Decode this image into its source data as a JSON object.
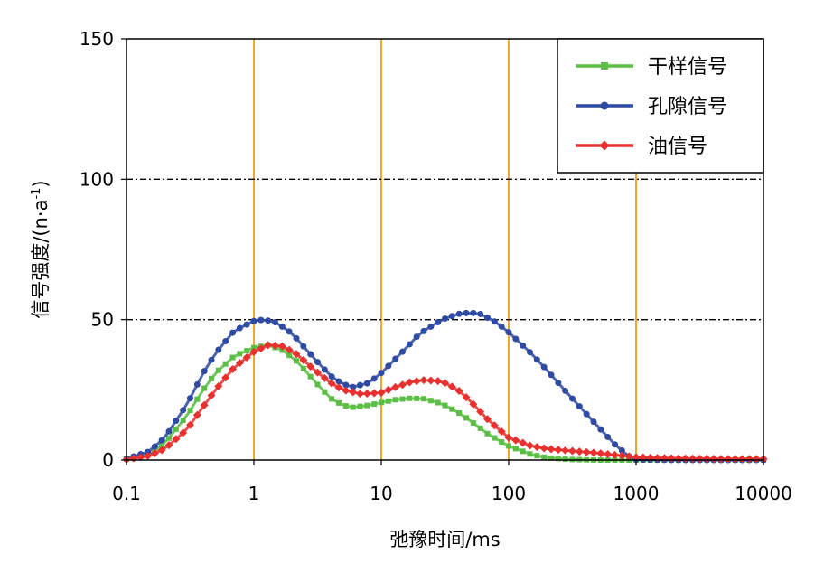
{
  "chart_data": {
    "type": "line",
    "xscale": "log",
    "xlim": [
      0.1,
      10000
    ],
    "ylim": [
      0,
      150
    ],
    "xticks": [
      0.1,
      1,
      10,
      100,
      1000,
      10000
    ],
    "xtick_labels": [
      "0.1",
      "1",
      "10",
      "100",
      "1000",
      "10000"
    ],
    "yticks": [
      0,
      50,
      100,
      150
    ],
    "ytick_labels": [
      "0",
      "50",
      "100",
      "150"
    ],
    "xlabel": "弛豫时间/ms",
    "ylabel_main": "信号强度/(n·a",
    "ylabel_sup": "-1",
    "ylabel_close": ")",
    "vertical_gridlines_at": [
      1,
      10,
      100,
      1000
    ],
    "horizontal_gridlines_at": [
      50,
      100
    ],
    "legend_position": "top-right",
    "series": [
      {
        "name": "干样信号",
        "color": "#5bbf45",
        "marker": "square",
        "points": [
          [
            0.1,
            0.3
          ],
          [
            0.15,
            2
          ],
          [
            0.2,
            6
          ],
          [
            0.3,
            16
          ],
          [
            0.4,
            25
          ],
          [
            0.5,
            31
          ],
          [
            0.7,
            37
          ],
          [
            1,
            40
          ],
          [
            1.3,
            41
          ],
          [
            1.7,
            39
          ],
          [
            2.2,
            35
          ],
          [
            3,
            28
          ],
          [
            4,
            22
          ],
          [
            5,
            19.5
          ],
          [
            6,
            18.8
          ],
          [
            8,
            19.5
          ],
          [
            10,
            20.5
          ],
          [
            13,
            21.5
          ],
          [
            17,
            22
          ],
          [
            22,
            21.8
          ],
          [
            30,
            20
          ],
          [
            40,
            17
          ],
          [
            50,
            14
          ],
          [
            70,
            9
          ],
          [
            100,
            5
          ],
          [
            150,
            2
          ],
          [
            200,
            0.8
          ],
          [
            300,
            0.2
          ],
          [
            500,
            0
          ],
          [
            1000,
            0
          ],
          [
            2000,
            0
          ],
          [
            5000,
            0
          ],
          [
            10000,
            0
          ]
        ]
      },
      {
        "name": "孔隙信号",
        "color": "#2e4aa3",
        "marker": "circle",
        "points": [
          [
            0.1,
            0.5
          ],
          [
            0.15,
            3
          ],
          [
            0.2,
            8
          ],
          [
            0.3,
            20
          ],
          [
            0.4,
            31
          ],
          [
            0.5,
            38
          ],
          [
            0.7,
            46
          ],
          [
            1,
            49.5
          ],
          [
            1.2,
            50
          ],
          [
            1.5,
            49
          ],
          [
            2,
            45
          ],
          [
            3,
            36
          ],
          [
            4,
            30
          ],
          [
            5,
            27
          ],
          [
            6,
            26
          ],
          [
            8,
            27.5
          ],
          [
            10,
            31
          ],
          [
            15,
            39
          ],
          [
            20,
            45
          ],
          [
            30,
            50
          ],
          [
            40,
            52
          ],
          [
            50,
            52.5
          ],
          [
            60,
            52
          ],
          [
            80,
            49
          ],
          [
            100,
            45.5
          ],
          [
            150,
            38
          ],
          [
            200,
            32
          ],
          [
            300,
            23
          ],
          [
            500,
            12
          ],
          [
            700,
            5
          ],
          [
            900,
            1
          ],
          [
            1000,
            0.2
          ],
          [
            2000,
            0
          ],
          [
            5000,
            0
          ],
          [
            10000,
            0
          ]
        ]
      },
      {
        "name": "油信号",
        "color": "#e8302e",
        "marker": "diamond",
        "points": [
          [
            0.1,
            0.2
          ],
          [
            0.15,
            1.5
          ],
          [
            0.2,
            4
          ],
          [
            0.3,
            11
          ],
          [
            0.4,
            19
          ],
          [
            0.5,
            25
          ],
          [
            0.7,
            33
          ],
          [
            1,
            38.5
          ],
          [
            1.3,
            41
          ],
          [
            1.7,
            40.5
          ],
          [
            2.2,
            37.5
          ],
          [
            3,
            32
          ],
          [
            4,
            27.5
          ],
          [
            5,
            25
          ],
          [
            7,
            23.5
          ],
          [
            10,
            24
          ],
          [
            13,
            26
          ],
          [
            17,
            27.8
          ],
          [
            22,
            28.5
          ],
          [
            30,
            28
          ],
          [
            40,
            25
          ],
          [
            50,
            21
          ],
          [
            70,
            14
          ],
          [
            100,
            8
          ],
          [
            150,
            5
          ],
          [
            200,
            4
          ],
          [
            300,
            3.3
          ],
          [
            500,
            2.5
          ],
          [
            1000,
            1
          ],
          [
            2000,
            0.6
          ],
          [
            5000,
            0.4
          ],
          [
            10000,
            0.4
          ]
        ]
      }
    ]
  }
}
